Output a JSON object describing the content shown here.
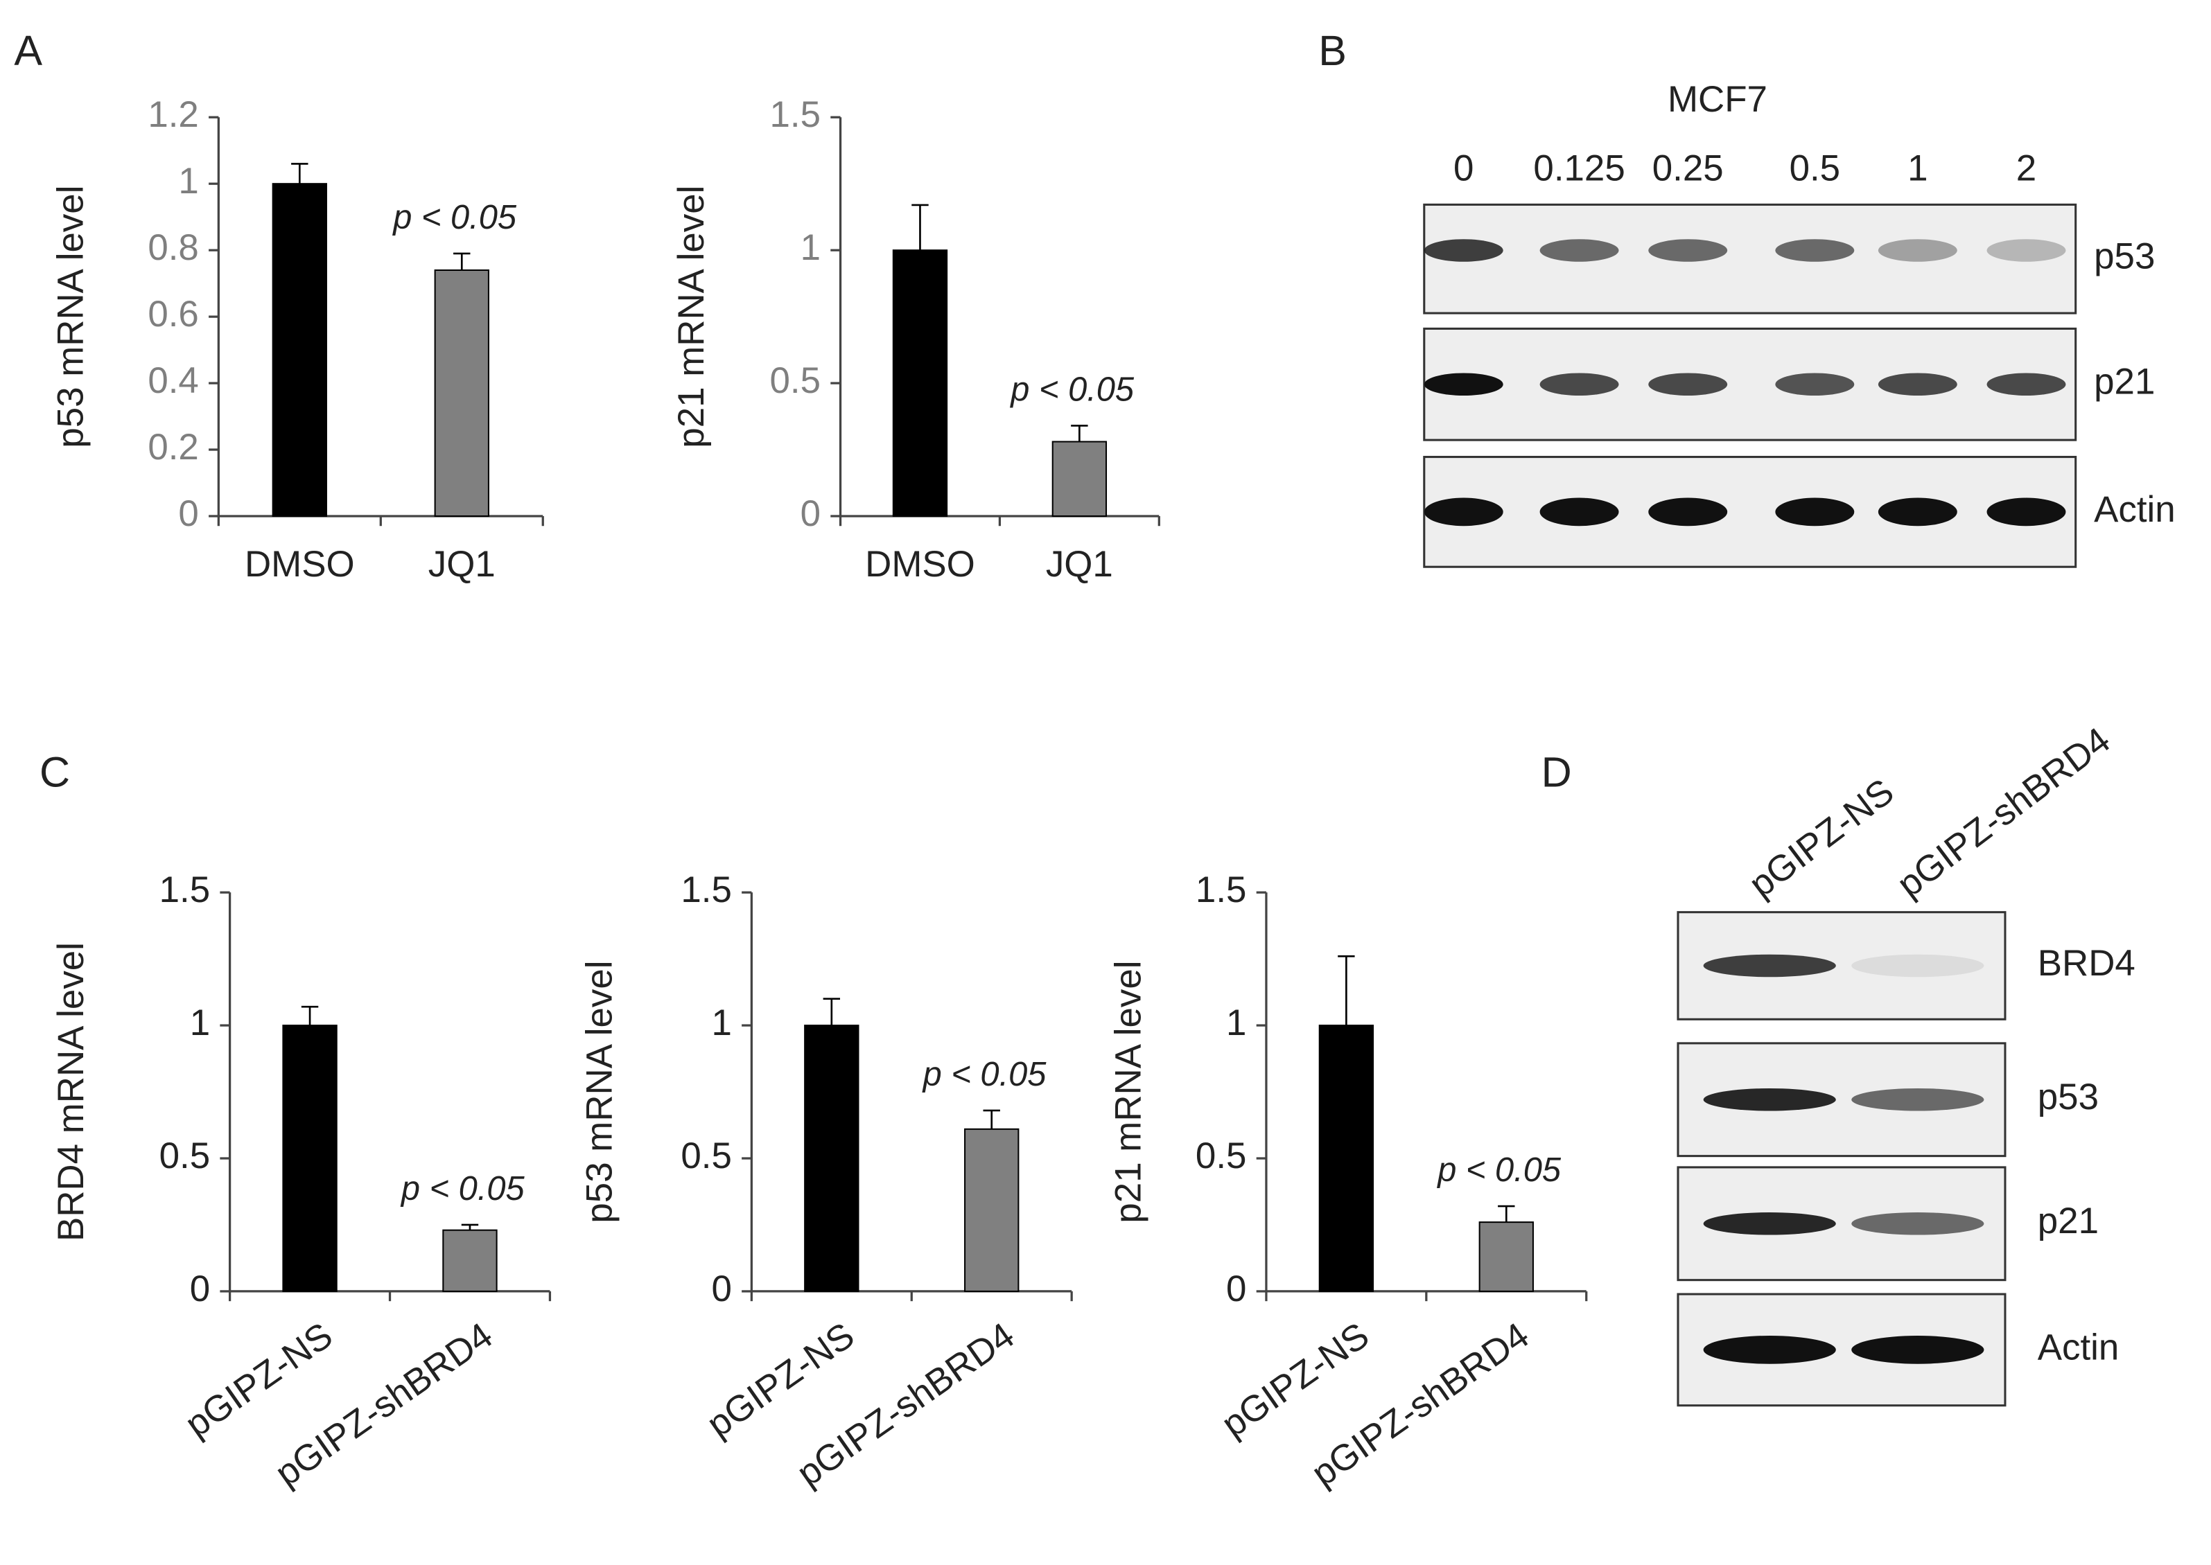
{
  "panels": [
    "A",
    "B",
    "C",
    "D"
  ],
  "chart_data": [
    {
      "type": "bar",
      "ylabel": "p53 mRNA level",
      "categories": [
        "DMSO",
        "JQ1"
      ],
      "values": [
        1,
        0.74
      ],
      "errors": [
        0.06,
        0.05
      ],
      "colors": [
        "#000000",
        "#808080"
      ],
      "annotation": "p < 0.05",
      "ylim": [
        0,
        1.2
      ],
      "yticks": [
        0,
        0.2,
        0.4,
        0.6,
        0.8,
        1,
        1.2
      ]
    },
    {
      "type": "bar",
      "ylabel": "p21 mRNA level",
      "categories": [
        "DMSO",
        "JQ1"
      ],
      "values": [
        1,
        0.28
      ],
      "errors": [
        0.17,
        0.06
      ],
      "colors": [
        "#000000",
        "#808080"
      ],
      "annotation": "p < 0.05",
      "ylim": [
        0,
        1.5
      ],
      "yticks": [
        0,
        0.5,
        1,
        1.5
      ]
    },
    {
      "type": "bar",
      "ylabel": "BRD4 mRNA level",
      "categories": [
        "pGIPZ-NS",
        "pGIPZ-shBRD4"
      ],
      "values": [
        1,
        0.23
      ],
      "errors": [
        0.07,
        0.02
      ],
      "colors": [
        "#000000",
        "#808080"
      ],
      "annotation": "p < 0.05",
      "ylim": [
        0,
        1.5
      ],
      "yticks": [
        0,
        0.5,
        1,
        1.5
      ]
    },
    {
      "type": "bar",
      "ylabel": "p53 mRNA level",
      "categories": [
        "pGIPZ-NS",
        "pGIPZ-shBRD4"
      ],
      "values": [
        1,
        0.61
      ],
      "errors": [
        0.1,
        0.07
      ],
      "colors": [
        "#000000",
        "#808080"
      ],
      "annotation": "p < 0.05",
      "ylim": [
        0,
        1.5
      ],
      "yticks": [
        0,
        0.5,
        1,
        1.5
      ]
    },
    {
      "type": "bar",
      "ylabel": "p21 mRNA level",
      "categories": [
        "pGIPZ-NS",
        "pGIPZ-shBRD4"
      ],
      "values": [
        1,
        0.26
      ],
      "errors": [
        0.26,
        0.06
      ],
      "colors": [
        "#000000",
        "#808080"
      ],
      "annotation": "p < 0.05",
      "ylim": [
        0,
        1.5
      ],
      "yticks": [
        0,
        0.5,
        1,
        1.5
      ]
    }
  ],
  "blots": [
    {
      "title": "MCF7",
      "lanes": [
        "0",
        "0.125",
        "0.25",
        "0.5",
        "1",
        "2"
      ],
      "rows": [
        "p53",
        "p21",
        "Actin"
      ]
    },
    {
      "lanes": [
        "pGIPZ-NS",
        "pGIPZ-shBRD4"
      ],
      "rows": [
        "BRD4",
        "p53",
        "p21",
        "Actin"
      ]
    }
  ]
}
